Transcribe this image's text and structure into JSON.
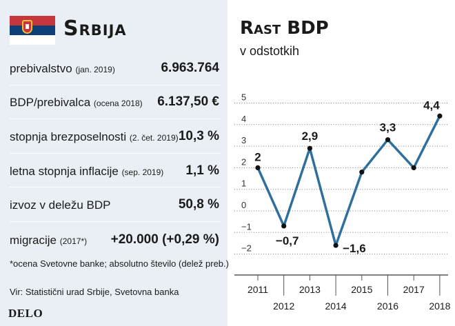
{
  "left": {
    "country": "Srbija",
    "rows": [
      {
        "label": "prebivalstvo",
        "note": "(jan. 2019)",
        "value": "6.963.764"
      },
      {
        "label": "BDP/prebivalca",
        "note": "(ocena 2018)",
        "value": "6.137,50 €"
      },
      {
        "label": "stopnja brezposelnosti",
        "note": "(2. čet. 2019)",
        "value": "10,3 %"
      },
      {
        "label": "letna stopnja inflacije",
        "note": "(sep. 2019)",
        "value": "1,1 %"
      },
      {
        "label": "izvoz v deležu BDP",
        "note": "",
        "value": "50,8 %"
      },
      {
        "label": "migracije",
        "note": "(2017*)",
        "value": "+20.000 (+0,29 %)"
      }
    ],
    "footnote": "*ocena Svetovne banke; absolutno število (delež preb.)",
    "source": "Vir: Statistični urad Srbije, Svetovna banka",
    "logo": "DELO"
  },
  "chart_data": {
    "type": "line",
    "title": "Rast BDP",
    "subtitle": "v odstotkih",
    "x": [
      "2011",
      "2012",
      "2013",
      "2014",
      "2015",
      "2016",
      "2017",
      "2018"
    ],
    "y": [
      2,
      -0.7,
      2.9,
      -1.6,
      1.8,
      3.3,
      2.0,
      4.4
    ],
    "data_labels": [
      "2",
      "−0,7",
      "2,9",
      "−1,6",
      "",
      "3,3",
      "",
      "4,4"
    ],
    "yticks": [
      -2,
      -1,
      0,
      1,
      2,
      3,
      4,
      5
    ],
    "ytick_labels": [
      "−2",
      "−1",
      "0",
      "1",
      "2",
      "3",
      "4",
      "5"
    ],
    "ylim": [
      -2.3,
      5.2
    ],
    "grid": true,
    "line_color": "#2f6f9c",
    "label_color": "#1a1a1a"
  }
}
